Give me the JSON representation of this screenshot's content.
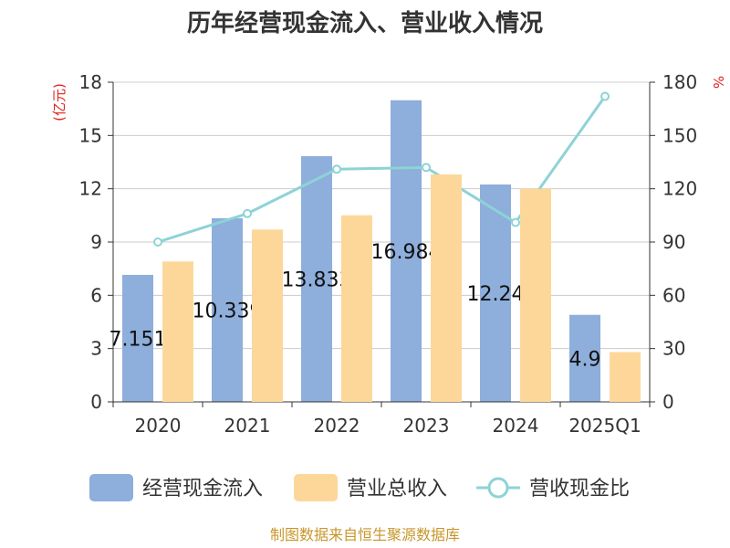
{
  "chart_data": {
    "type": "bar",
    "title": "历年经营现金流入、营业收入情况",
    "categories": [
      "2020",
      "2021",
      "2022",
      "2023",
      "2024",
      "2025Q1"
    ],
    "series": [
      {
        "name": "经营现金流入",
        "type": "bar",
        "axis": "left",
        "color": "#8eaedb",
        "values": [
          7.151,
          10.339,
          13.833,
          16.984,
          12.24,
          4.9
        ],
        "labels": [
          "7.151",
          "10.339",
          "13.833",
          "16.984",
          "12.24",
          "4.9"
        ]
      },
      {
        "name": "营业总收入",
        "type": "bar",
        "axis": "left",
        "color": "#fdd79a",
        "values": [
          7.9,
          9.7,
          10.5,
          12.8,
          12.0,
          2.8
        ]
      },
      {
        "name": "营收现金比",
        "type": "line",
        "axis": "right",
        "color": "#8dd3d6",
        "values": [
          90.0,
          106.0,
          131.0,
          132.0,
          101.0,
          172.0
        ]
      }
    ],
    "y_left": {
      "label": "(亿元)",
      "min": 0,
      "max": 18,
      "ticks": [
        0,
        3,
        6,
        9,
        12,
        15,
        18
      ]
    },
    "y_right": {
      "label": "%",
      "min": 0,
      "max": 180,
      "ticks": [
        0,
        30,
        60,
        90,
        120,
        150,
        180
      ]
    },
    "grid": true,
    "legend_position": "bottom"
  },
  "source": "制图数据来自恒生聚源数据库"
}
